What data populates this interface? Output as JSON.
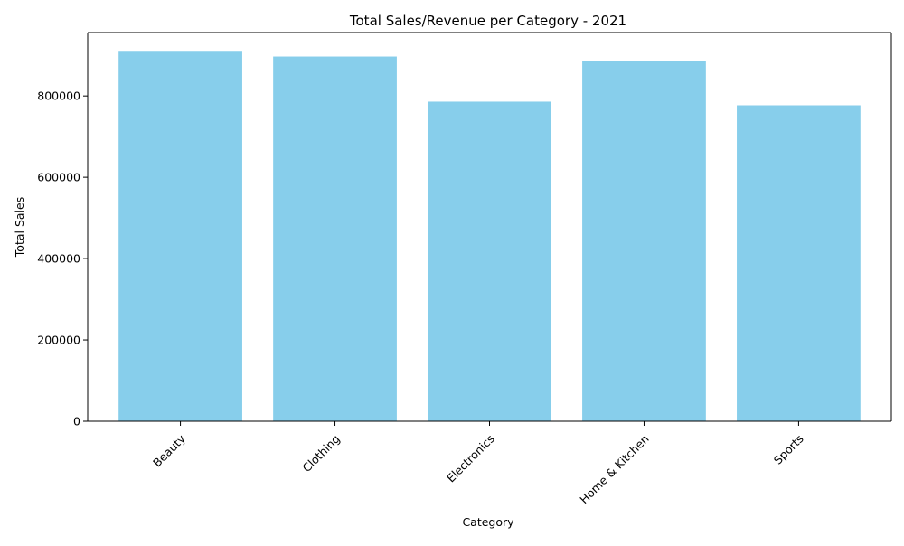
{
  "chart_data": {
    "type": "bar",
    "title": "Total Sales/Revenue per Category - 2021",
    "xlabel": "Category",
    "ylabel": "Total Sales",
    "categories": [
      "Beauty",
      "Clothing",
      "Electronics",
      "Home & Kitchen",
      "Sports"
    ],
    "values": [
      911000,
      897000,
      786000,
      886000,
      777000
    ],
    "ylim": [
      0,
      956000
    ],
    "yticks": [
      0,
      200000,
      400000,
      600000,
      800000
    ],
    "ytick_labels": [
      "0",
      "200000",
      "400000",
      "600000",
      "800000"
    ],
    "xtick_rotation_deg": 45,
    "grid": false,
    "legend": "none",
    "colors": {
      "bar": "#87ceeb",
      "axis": "#000000",
      "text": "#000000",
      "background": "#ffffff"
    }
  }
}
